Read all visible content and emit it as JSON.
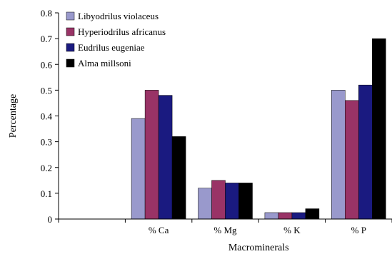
{
  "chart_data": {
    "type": "bar",
    "categories": [
      "% Ca",
      "% Mg",
      "% K",
      "% P"
    ],
    "series": [
      {
        "name": "Libyodrilus violaceus",
        "color": "#9999cc",
        "values": [
          0.39,
          0.12,
          0.025,
          0.5
        ]
      },
      {
        "name": "Hyperiodrilus africanus",
        "color": "#993366",
        "values": [
          0.5,
          0.15,
          0.025,
          0.46
        ]
      },
      {
        "name": "Eudrilus eugeniae",
        "color": "#1a1a80",
        "values": [
          0.48,
          0.14,
          0.025,
          0.52
        ]
      },
      {
        "name": "Alma millsoni",
        "color": "#000000",
        "values": [
          0.32,
          0.14,
          0.04,
          0.7
        ]
      }
    ],
    "xlabel": "Macrominerals",
    "ylabel": "Percentage",
    "ylim": [
      0,
      0.8
    ],
    "yticks": [
      "0",
      "0.1",
      "0.2",
      "0.3",
      "0.4",
      "0.5",
      "0.6",
      "0.7",
      "0.8"
    ],
    "grid": false,
    "legend_position": "top-left"
  }
}
